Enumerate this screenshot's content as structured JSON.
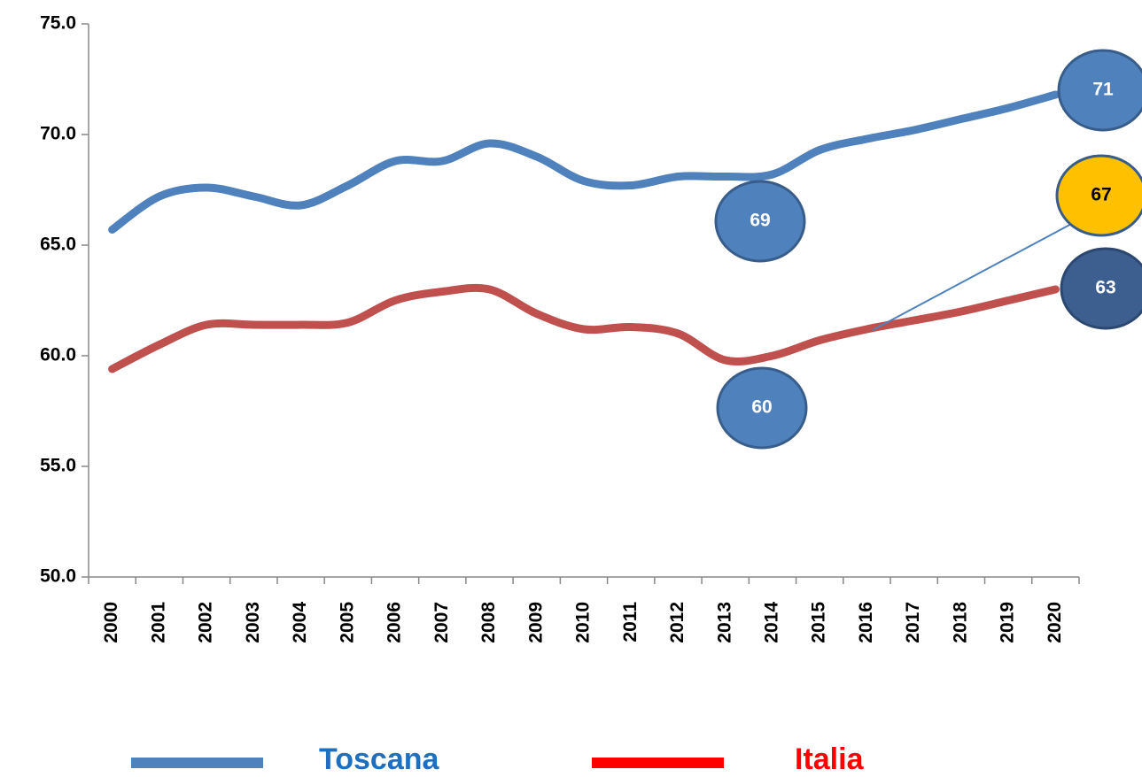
{
  "chart_data": {
    "type": "line",
    "categories": [
      "2000",
      "2001",
      "2002",
      "2003",
      "2004",
      "2005",
      "2006",
      "2007",
      "2008",
      "2009",
      "2010",
      "2011",
      "2012",
      "2013",
      "2014",
      "2015",
      "2016",
      "2017",
      "2018",
      "2019",
      "2020"
    ],
    "series": [
      {
        "name": "Toscana",
        "color": "#4f81bd",
        "values": [
          65.7,
          67.2,
          67.6,
          67.2,
          66.8,
          67.7,
          68.8,
          68.8,
          69.6,
          69.0,
          67.9,
          67.7,
          68.1,
          68.1,
          68.2,
          69.3,
          69.8,
          70.2,
          70.7,
          71.2,
          71.8
        ]
      },
      {
        "name": "Italia",
        "color": "#c0504d",
        "values": [
          59.4,
          60.5,
          61.4,
          61.4,
          61.4,
          61.5,
          62.5,
          62.9,
          63.0,
          61.9,
          61.2,
          61.3,
          61.0,
          59.8,
          60.0,
          60.7,
          61.2,
          61.6,
          62.0,
          62.5,
          63.0
        ]
      }
    ],
    "ylim": [
      50,
      75
    ],
    "yticks": [
      {
        "value": 50,
        "label": "50.0"
      },
      {
        "value": 55,
        "label": "55.0"
      },
      {
        "value": 60,
        "label": "60.0"
      },
      {
        "value": 65,
        "label": "65.0"
      },
      {
        "value": 70,
        "label": "70.0"
      },
      {
        "value": 75,
        "label": "75.0"
      }
    ],
    "annotations": [
      "71",
      "69",
      "60",
      "67",
      "63"
    ],
    "legend": "bottom"
  }
}
